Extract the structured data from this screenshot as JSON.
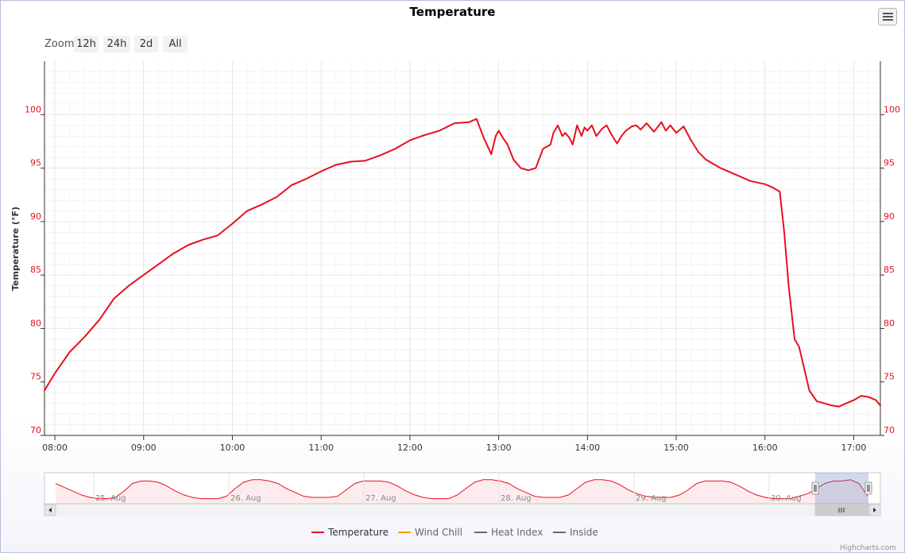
{
  "title": "Temperature",
  "zoom": {
    "label": "Zoom",
    "buttons": [
      "12h",
      "24h",
      "2d",
      "All"
    ]
  },
  "legend": [
    {
      "name": "Temperature",
      "color": "#e8101f",
      "visible": true
    },
    {
      "name": "Wind Chill",
      "color": "#f39c12",
      "visible": false
    },
    {
      "name": "Heat Index",
      "color": "#666677",
      "visible": false
    },
    {
      "name": "Inside",
      "color": "#666677",
      "visible": false
    }
  ],
  "credits": "Highcharts.com",
  "chart_data": {
    "type": "line",
    "title": "Temperature",
    "ylabel": "Temperature (°F)",
    "xlabel": "",
    "ylim": [
      70,
      105
    ],
    "yticks": [
      70,
      75,
      80,
      85,
      90,
      95,
      100
    ],
    "xlim": [
      "07:53",
      "17:18"
    ],
    "xticks": [
      "08:00",
      "09:00",
      "10:00",
      "11:00",
      "12:00",
      "13:00",
      "14:00",
      "15:00",
      "16:00",
      "17:00"
    ],
    "grid": true,
    "series": [
      {
        "name": "Temperature",
        "color": "#e8101f",
        "x": [
          "07:53",
          "08:00",
          "08:10",
          "08:20",
          "08:30",
          "08:40",
          "08:50",
          "09:00",
          "09:10",
          "09:20",
          "09:30",
          "09:40",
          "09:50",
          "10:00",
          "10:10",
          "10:20",
          "10:30",
          "10:40",
          "10:50",
          "11:00",
          "11:10",
          "11:20",
          "11:30",
          "11:40",
          "11:50",
          "12:00",
          "12:10",
          "12:20",
          "12:30",
          "12:40",
          "12:45",
          "12:50",
          "12:55",
          "12:58",
          "13:00",
          "13:03",
          "13:06",
          "13:10",
          "13:15",
          "13:20",
          "13:25",
          "13:30",
          "13:35",
          "13:37",
          "13:40",
          "13:43",
          "13:45",
          "13:48",
          "13:50",
          "13:53",
          "13:56",
          "13:58",
          "14:00",
          "14:03",
          "14:06",
          "14:10",
          "14:13",
          "14:16",
          "14:20",
          "14:23",
          "14:26",
          "14:30",
          "14:33",
          "14:36",
          "14:40",
          "14:45",
          "14:50",
          "14:53",
          "14:56",
          "15:00",
          "15:05",
          "15:10",
          "15:15",
          "15:20",
          "15:30",
          "15:40",
          "15:50",
          "16:00",
          "16:05",
          "16:10",
          "16:13",
          "16:16",
          "16:20",
          "16:23",
          "16:27",
          "16:30",
          "16:35",
          "16:40",
          "16:45",
          "16:50",
          "16:55",
          "17:00",
          "17:05",
          "17:10",
          "17:15",
          "17:18"
        ],
        "values": [
          74.2,
          75.8,
          77.8,
          79.2,
          80.8,
          82.8,
          84,
          85,
          86,
          87,
          87.8,
          88.3,
          88.7,
          89.8,
          91,
          91.6,
          92.3,
          93.4,
          94,
          94.7,
          95.3,
          95.6,
          95.7,
          96.2,
          96.8,
          97.6,
          98.1,
          98.5,
          99.2,
          99.3,
          99.6,
          97.8,
          96.3,
          98,
          98.5,
          97.8,
          97.2,
          95.8,
          95,
          94.8,
          95,
          96.8,
          97.2,
          98.3,
          99,
          98,
          98.3,
          97.8,
          97.2,
          99,
          98,
          98.8,
          98.5,
          99,
          98,
          98.7,
          99,
          98.2,
          97.3,
          98,
          98.5,
          98.9,
          99,
          98.6,
          99.2,
          98.4,
          99.3,
          98.5,
          99,
          98.3,
          98.9,
          97.6,
          96.5,
          95.8,
          95,
          94.4,
          93.8,
          93.5,
          93.2,
          92.8,
          89,
          84,
          79,
          78.3,
          76,
          74.2,
          73.2,
          73,
          72.8,
          72.7,
          73,
          73.3,
          73.7,
          73.6,
          73.3,
          72.8
        ]
      }
    ],
    "navigator": {
      "x_labels": [
        "25. Aug",
        "26. Aug",
        "27. Aug",
        "28. Aug",
        "29. Aug",
        "30. Aug"
      ],
      "values": [
        86,
        83,
        80,
        77,
        75,
        74,
        74,
        75,
        80,
        86,
        88,
        88,
        87,
        84,
        80,
        77,
        75,
        74,
        74,
        74,
        76,
        82,
        87,
        89,
        89,
        88,
        86,
        82,
        79,
        76,
        75,
        75,
        75,
        76,
        81,
        86,
        88,
        88,
        88,
        87,
        84,
        80,
        77,
        75,
        74,
        74,
        74,
        77,
        82,
        87,
        89,
        89,
        88,
        86,
        82,
        79,
        76,
        75,
        75,
        75,
        77,
        82,
        87,
        89,
        89,
        88,
        85,
        81,
        78,
        76,
        75,
        75,
        75,
        77,
        81,
        86,
        88,
        88,
        88,
        87,
        84,
        80,
        77,
        75,
        74,
        74,
        74,
        76,
        78,
        82,
        86,
        88,
        88,
        89,
        86,
        76
      ],
      "selected_range": [
        "30. Aug 07:53",
        "30. Aug 17:18"
      ]
    }
  }
}
